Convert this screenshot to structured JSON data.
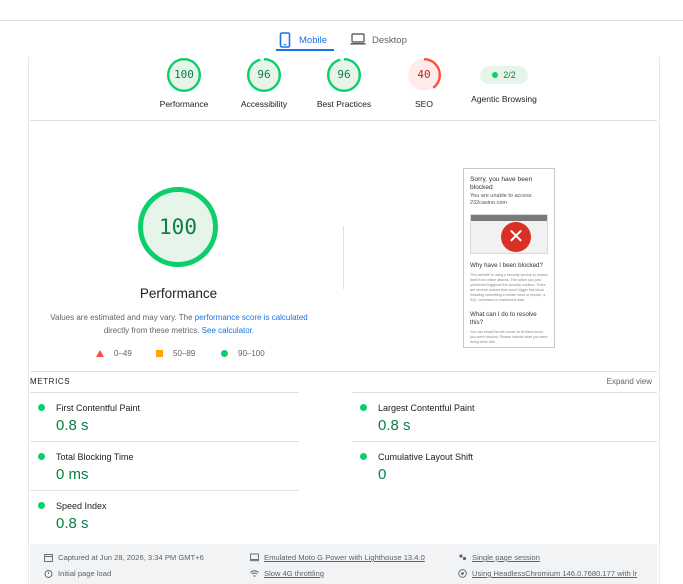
{
  "device_tabs": {
    "mobile": "Mobile",
    "desktop": "Desktop"
  },
  "scores": [
    {
      "label": "Performance",
      "value": "100",
      "fraction": 1.0,
      "status": "pass"
    },
    {
      "label": "Accessibility",
      "value": "96",
      "fraction": 0.96,
      "status": "pass"
    },
    {
      "label": "Best Practices",
      "value": "96",
      "fraction": 0.96,
      "status": "pass"
    },
    {
      "label": "SEO",
      "value": "40",
      "fraction": 0.4,
      "status": "fail"
    }
  ],
  "agentic": {
    "label": "Agentic Browsing",
    "badge": "2/2"
  },
  "performance": {
    "score": "100",
    "fraction": 1.0,
    "title": "Performance",
    "desc_prefix": "Values are estimated and may vary. The ",
    "desc_link": "performance score is calculated",
    "desc_mid": " directly from these metrics. ",
    "desc_link2": "See calculator.",
    "legend": [
      "0–49",
      "50–89",
      "90–100"
    ]
  },
  "thumbnail": {
    "title": "Sorry, you have been blocked",
    "subtitle": "You are unable to access 232casino.com",
    "why": "Why have I been blocked?",
    "why_text": "This website is using a security service to protect itself from online attacks. The action you just performed triggered the security solution. There are several actions that could trigger this block including submitting a certain word or phrase, a SQL command or malformed data.",
    "what": "What can I do to resolve this?",
    "what_text": "You can email the site owner to let them know you were blocked. Please include what you were doing when this"
  },
  "metrics": {
    "heading": "METRICS",
    "expand": "Expand view",
    "items": [
      {
        "name": "First Contentful Paint",
        "value": "0.8 s"
      },
      {
        "name": "Largest Contentful Paint",
        "value": "0.8 s"
      },
      {
        "name": "Total Blocking Time",
        "value": "0 ms"
      },
      {
        "name": "Cumulative Layout Shift",
        "value": "0"
      },
      {
        "name": "Speed Index",
        "value": "0.8 s"
      }
    ]
  },
  "runtime": {
    "captured": "Captured at Jun 28, 2026, 3:34 PM GMT+6",
    "emulated": "Emulated Moto G Power with Lighthouse 13.4.0",
    "session": "Single page session",
    "initial": "Initial page load",
    "throttling": "Slow 4G throttling",
    "browser": "Using HeadlessChromium 146.0.7680.177 with lr"
  },
  "colors": {
    "pass": "#0cce6b",
    "pass_text": "#0b8043",
    "fail": "#ff4e42",
    "fail_text": "#c5221f",
    "average": "#ffa400",
    "accent": "#1a73e8"
  }
}
